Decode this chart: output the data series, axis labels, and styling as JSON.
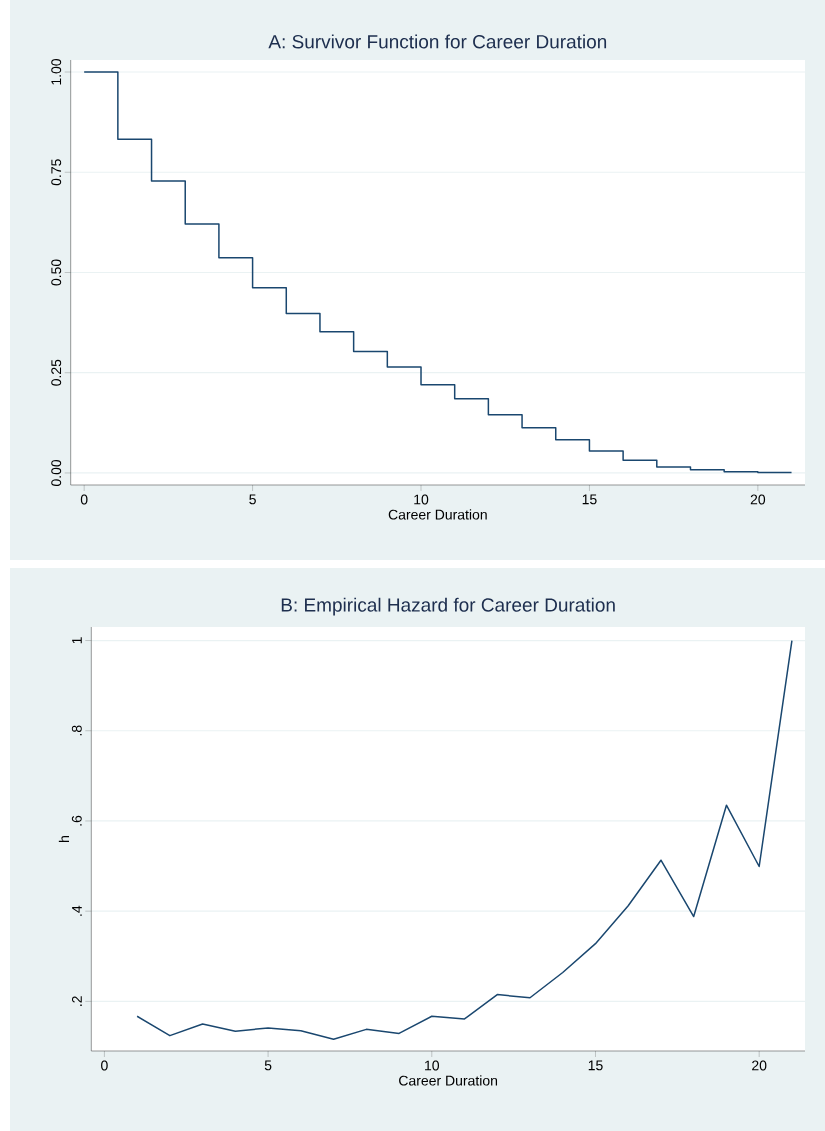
{
  "chart_data": [
    {
      "type": "step",
      "title": "A: Survivor Function for Career Duration",
      "xlabel": "Career Duration",
      "x": [
        0,
        1,
        2,
        3,
        4,
        5,
        6,
        7,
        8,
        9,
        10,
        11,
        12,
        13,
        14,
        15,
        16,
        17,
        18,
        19,
        20,
        21
      ],
      "series": [
        {
          "color": "#1a476f",
          "values": [
            1.0,
            0.832,
            0.728,
            0.621,
            0.537,
            0.462,
            0.398,
            0.352,
            0.303,
            0.264,
            0.22,
            0.185,
            0.145,
            0.113,
            0.083,
            0.055,
            0.032,
            0.015,
            0.008,
            0.003,
            0.001,
            0.001
          ]
        }
      ],
      "xlim": [
        -0.4,
        21.4
      ],
      "ylim": [
        -0.03,
        1.03
      ],
      "xticks": [
        0,
        5,
        10,
        15,
        20
      ],
      "yticks": [
        {
          "value": 0,
          "label": "0.00"
        },
        {
          "value": 0.25,
          "label": "0.25"
        },
        {
          "value": 0.5,
          "label": "0.50"
        },
        {
          "value": 0.75,
          "label": "0.75"
        },
        {
          "value": 1,
          "label": "1.00"
        }
      ],
      "grid": "y"
    },
    {
      "type": "line",
      "title": "B: Empirical Hazard for Career Duration",
      "xlabel": "Career Duration",
      "ylabel": "h",
      "x": [
        1,
        2,
        3,
        4,
        5,
        6,
        7,
        8,
        9,
        10,
        11,
        12,
        13,
        14,
        15,
        16,
        17,
        18,
        19,
        20,
        21
      ],
      "series": [
        {
          "color": "#1a476f",
          "values": [
            0.167,
            0.124,
            0.15,
            0.134,
            0.141,
            0.135,
            0.116,
            0.138,
            0.129,
            0.167,
            0.161,
            0.215,
            0.208,
            0.264,
            0.328,
            0.412,
            0.513,
            0.388,
            0.635,
            0.499,
            1.0
          ]
        }
      ],
      "xlim": [
        -0.4,
        21.4
      ],
      "ylim": [
        0.09,
        1.03
      ],
      "xticks": [
        0,
        5,
        10,
        15,
        20
      ],
      "yticks": [
        {
          "value": 0.2,
          "label": ".2"
        },
        {
          "value": 0.4,
          "label": ".4"
        },
        {
          "value": 0.6,
          "label": ".6"
        },
        {
          "value": 0.8,
          "label": ".8"
        },
        {
          "value": 1,
          "label": "1"
        }
      ],
      "grid": "y"
    }
  ]
}
